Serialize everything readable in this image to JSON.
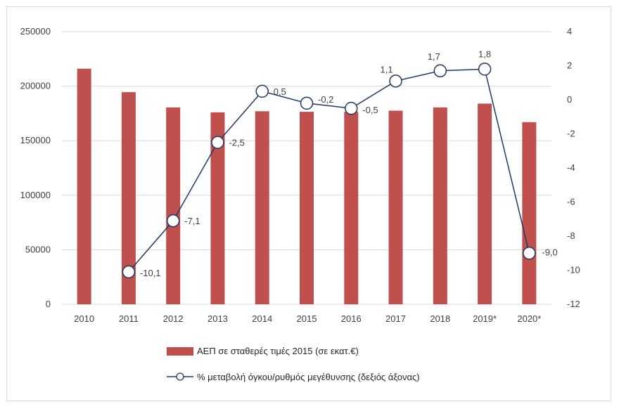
{
  "chart_data": {
    "type": "bar",
    "categories": [
      "2010",
      "2011",
      "2012",
      "2013",
      "2014",
      "2015",
      "2016",
      "2017",
      "2018",
      "2019*",
      "2020*"
    ],
    "series": [
      {
        "name": "ΑΕΠ σε σταθερές τιμές 2015 (σε εκατ.€)",
        "type": "bar",
        "axis": "left",
        "color": "#c0504d",
        "values": [
          216000,
          194500,
          180500,
          176000,
          177000,
          176500,
          176500,
          177500,
          180500,
          184000,
          167000
        ]
      },
      {
        "name": "% μεταβολή όγκου/ρυθμός μεγέθυνσης (δεξιός άξονας)",
        "type": "line",
        "axis": "right",
        "color": "#1f3864",
        "values": [
          null,
          -10.1,
          -7.1,
          -2.5,
          0.5,
          -0.2,
          -0.5,
          1.1,
          1.7,
          1.8,
          -9.0
        ],
        "labels": [
          "",
          "-10,1",
          "-7,1",
          "-2,5",
          "0,5",
          "-0,2",
          "-0,5",
          "1,1",
          "1,7",
          "1,8",
          "-9,0"
        ]
      }
    ],
    "y_left": {
      "min": 0,
      "max": 250000,
      "step": 50000,
      "ticks": [
        "0",
        "50000",
        "100000",
        "150000",
        "200000",
        "250000"
      ]
    },
    "y_right": {
      "min": -12,
      "max": 4,
      "step": 2,
      "ticks": [
        "-12",
        "-10",
        "-8",
        "-6",
        "-4",
        "-2",
        "0",
        "2",
        "4"
      ]
    },
    "grid": true,
    "legend_position": "bottom"
  }
}
